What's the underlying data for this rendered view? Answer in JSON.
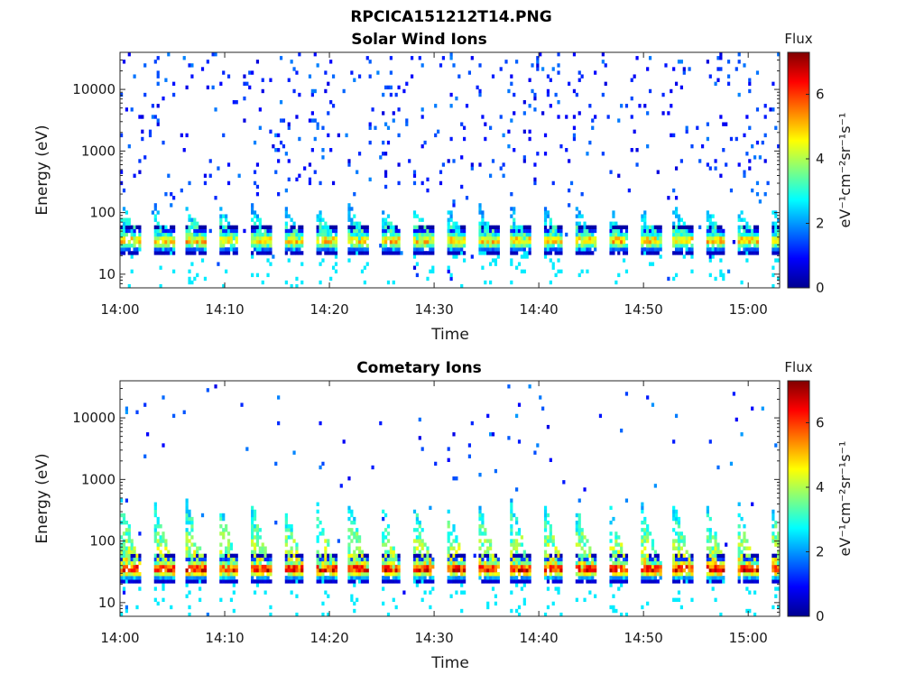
{
  "figure": {
    "title": "RPCICA151212T14.PNG"
  },
  "chart_data": [
    {
      "type": "heatmap",
      "title": "Solar Wind Ions",
      "xlabel": "Time",
      "ylabel": "Energy (eV)",
      "y_scale": "log",
      "xlim": [
        "14:00",
        "15:03"
      ],
      "ylim": [
        6,
        40000
      ],
      "x_ticks": [
        "14:00",
        "14:10",
        "14:20",
        "14:30",
        "14:40",
        "14:50",
        "15:00"
      ],
      "y_ticks": [
        "10",
        "100",
        "1000",
        "10000"
      ],
      "grid": false,
      "colorbar": {
        "label": "Flux",
        "units": "eV⁻¹cm⁻²sr⁻¹s⁻¹",
        "ticks": [
          0,
          2,
          4,
          6
        ],
        "range": [
          0,
          7.3
        ],
        "colormap": "jet"
      },
      "cycle_minutes": 3.1,
      "peak_energy_eV": 35,
      "peak_flux": 5.5,
      "burst_top_energy_eV": 150,
      "background_flux": 1.1
    },
    {
      "type": "heatmap",
      "title": "Cometary Ions",
      "xlabel": "Time",
      "ylabel": "Energy (eV)",
      "y_scale": "log",
      "xlim": [
        "14:00",
        "15:03"
      ],
      "ylim": [
        6,
        40000
      ],
      "x_ticks": [
        "14:00",
        "14:10",
        "14:20",
        "14:30",
        "14:40",
        "14:50",
        "15:00"
      ],
      "y_ticks": [
        "10",
        "100",
        "1000",
        "10000"
      ],
      "grid": false,
      "colorbar": {
        "label": "Flux",
        "units": "eV⁻¹cm⁻²sr⁻¹s⁻¹",
        "ticks": [
          0,
          2,
          4,
          6
        ],
        "range": [
          0,
          7.3
        ],
        "colormap": "jet"
      },
      "cycle_minutes": 3.1,
      "peak_energy_eV": 35,
      "peak_flux": 7.0,
      "burst_top_energy_eV": 500,
      "background_flux": 1.2
    }
  ]
}
